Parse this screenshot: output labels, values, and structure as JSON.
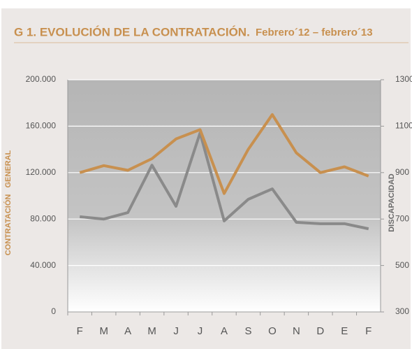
{
  "chart_data": {
    "type": "line",
    "title": "G 1. EVOLUCIÓN DE LA CONTRATACIÓN.",
    "subtitle": "Febrero´12 – febrero´13",
    "ylabel": "CONTRATACIÓN   GENERAL",
    "y2label": "DISCAPACIDAD",
    "categories": [
      "F",
      "M",
      "A",
      "M",
      "J",
      "J",
      "A",
      "S",
      "O",
      "N",
      "D",
      "E",
      "F"
    ],
    "series": [
      {
        "color": "#c8904f",
        "values": [
          120000,
          126000,
          122000,
          132000,
          149000,
          157000,
          102000,
          140000,
          170000,
          137000,
          120000,
          125000,
          117000
        ]
      },
      {
        "color": "#8a8a8a",
        "axis": "y2",
        "values": [
          710,
          700,
          728,
          932,
          755,
          1071,
          692,
          785,
          830,
          686,
          680,
          680,
          658
        ]
      }
    ],
    "ylim": [
      0,
      200000
    ],
    "yticks": [
      0,
      {
        "value": 40000,
        "label": "40.000"
      },
      {
        "value": 80000,
        "label": "80.000"
      },
      {
        "value": 120000,
        "label": "120.000"
      },
      {
        "value": 160000,
        "label": "160.000"
      },
      {
        "value": 200000,
        "label": "200.000"
      }
    ],
    "y2lim": [
      300,
      1300
    ],
    "y2ticks": [
      300,
      500,
      700,
      900,
      1100,
      1300
    ],
    "grid": true
  }
}
